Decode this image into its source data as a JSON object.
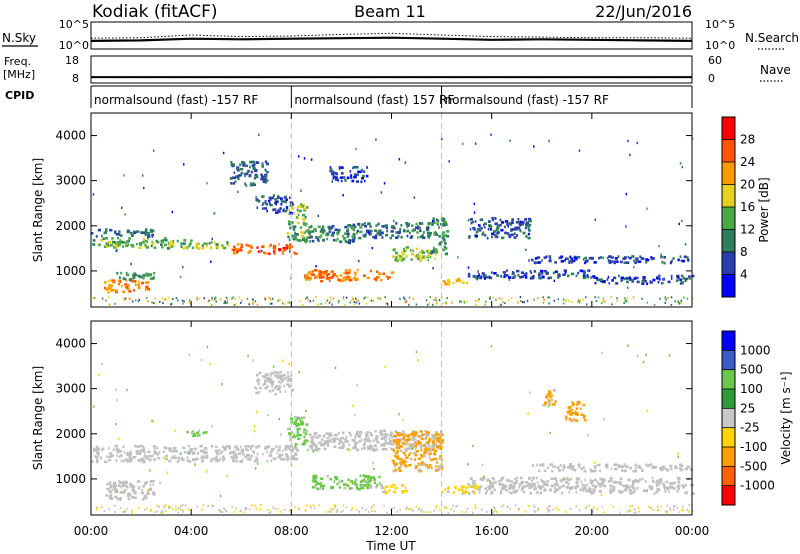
{
  "header": {
    "station": "Kodiak (fitACF)",
    "beam": "Beam 11",
    "date": "22/Jun/2016"
  },
  "colors": {
    "power_scale": [
      "#0000ff",
      "#2a3fae",
      "#2e7d5e",
      "#49a848",
      "#e6d21e",
      "#ff9b00",
      "#ff5500",
      "#ff0000"
    ],
    "velocity_scale": [
      "#ff0000",
      "#ff6000",
      "#ffa000",
      "#ffd400",
      "#c8c8c8",
      "#2e9c3a",
      "#6cc84a",
      "#3a5cc8",
      "#0000ff"
    ],
    "ground_scatter": "#c0c0c0"
  },
  "chart_data": [
    {
      "type": "line",
      "panel": "sky-noise",
      "left_label": "N.Sky",
      "left_ticks": [
        "10^5",
        "10^0"
      ],
      "right_label": "N.Search",
      "right_ticks": [
        "10^5",
        "10^0"
      ],
      "ylim": [
        0,
        5
      ],
      "ylog": true,
      "series": [
        {
          "name": "N.Sky",
          "style": "solid",
          "x": [
            0,
            2,
            4,
            6,
            8,
            10,
            12,
            14,
            16,
            18,
            20,
            22,
            24
          ],
          "y": [
            1.5,
            1.6,
            1.9,
            1.8,
            1.9,
            2.0,
            2.1,
            1.9,
            1.7,
            1.8,
            1.7,
            1.6,
            1.5
          ]
        },
        {
          "name": "N.Search",
          "style": "dotted",
          "x": [
            0,
            2,
            4,
            6,
            8,
            10,
            12,
            14,
            16,
            18,
            20,
            22,
            24
          ],
          "y": [
            2.0,
            2.1,
            2.6,
            2.3,
            2.4,
            2.7,
            2.9,
            2.6,
            2.3,
            2.2,
            2.1,
            2.1,
            2.0
          ]
        }
      ]
    },
    {
      "type": "line",
      "panel": "frequency-nave",
      "left_label": "Freq.",
      "left_unit": "[MHz]",
      "left_ticks": [
        "18",
        "8"
      ],
      "right_label": "Nave",
      "right_ticks": [
        "60",
        "0"
      ],
      "ylim": [
        8,
        18
      ],
      "y2lim": [
        0,
        60
      ],
      "series": [
        {
          "name": "Freq.",
          "style": "solid",
          "x": [
            0,
            24
          ],
          "y": [
            10.2,
            10.2
          ]
        },
        {
          "name": "Nave",
          "style": "dotted",
          "x": [
            0,
            24
          ],
          "y": [
            12,
            12
          ]
        }
      ]
    },
    {
      "type": "table",
      "panel": "cpid",
      "label": "CPID",
      "segments": [
        {
          "start": 0,
          "end": 8,
          "text": "normalsound (fast) -157 RF"
        },
        {
          "start": 8,
          "end": 14,
          "text": "normalsound (fast) 157 RF"
        },
        {
          "start": 14,
          "end": 24,
          "text": "normalsound (fast) -157 RF"
        }
      ]
    },
    {
      "type": "heatmap",
      "panel": "power",
      "ylabel": "Slant Range [km]",
      "xlim": [
        0,
        24
      ],
      "ylim": [
        200,
        4500
      ],
      "y_ticks": [
        1000,
        2000,
        3000,
        4000
      ],
      "colorbar_label": "Power [dB]",
      "colorbar_ticks": [
        4,
        8,
        12,
        16,
        20,
        24,
        28
      ],
      "colorbar_range": [
        0,
        32
      ],
      "regions": [
        {
          "x0": 0.0,
          "x1": 3.0,
          "y0": 1540,
          "y1": 1760,
          "v": 14
        },
        {
          "x0": 3.0,
          "x1": 5.5,
          "y0": 1520,
          "y1": 1720,
          "v": 15
        },
        {
          "x0": 5.5,
          "x1": 8.2,
          "y0": 1400,
          "y1": 1620,
          "v": 26
        },
        {
          "x0": 0.0,
          "x1": 2.5,
          "y0": 1780,
          "y1": 1950,
          "v": 8
        },
        {
          "x0": 0.5,
          "x1": 2.3,
          "y0": 550,
          "y1": 820,
          "v": 22
        },
        {
          "x0": 1.0,
          "x1": 2.5,
          "y0": 820,
          "y1": 980,
          "v": 12
        },
        {
          "x0": 5.5,
          "x1": 7.0,
          "y0": 2900,
          "y1": 3450,
          "v": 8
        },
        {
          "x0": 7.8,
          "x1": 8.6,
          "y0": 1700,
          "y1": 2500,
          "v": 14
        },
        {
          "x0": 8.5,
          "x1": 10.5,
          "y0": 1650,
          "y1": 2050,
          "v": 10
        },
        {
          "x0": 8.5,
          "x1": 12.0,
          "y0": 800,
          "y1": 1050,
          "v": 24
        },
        {
          "x0": 10.5,
          "x1": 13.5,
          "y0": 1750,
          "y1": 2100,
          "v": 9
        },
        {
          "x0": 12.0,
          "x1": 13.8,
          "y0": 1250,
          "y1": 1550,
          "v": 16
        },
        {
          "x0": 13.5,
          "x1": 14.2,
          "y0": 1400,
          "y1": 2200,
          "v": 12
        },
        {
          "x0": 14.0,
          "x1": 15.0,
          "y0": 700,
          "y1": 850,
          "v": 20
        },
        {
          "x0": 15.0,
          "x1": 20.0,
          "y0": 860,
          "y1": 1040,
          "v": 7
        },
        {
          "x0": 20.0,
          "x1": 24.0,
          "y0": 740,
          "y1": 920,
          "v": 6
        },
        {
          "x0": 15.0,
          "x1": 17.5,
          "y0": 1750,
          "y1": 2200,
          "v": 7
        },
        {
          "x0": 17.5,
          "x1": 24.0,
          "y0": 1200,
          "y1": 1350,
          "v": 6
        },
        {
          "x0": 9.5,
          "x1": 11.0,
          "y0": 3000,
          "y1": 3350,
          "v": 6
        },
        {
          "x0": 6.5,
          "x1": 8.0,
          "y0": 2300,
          "y1": 2700,
          "v": 6
        }
      ]
    },
    {
      "type": "heatmap",
      "panel": "velocity",
      "ylabel": "Slant Range [km]",
      "xlabel": "Time UT",
      "xlim": [
        0,
        24
      ],
      "ylim": [
        200,
        4500
      ],
      "x_ticks": [
        "00:00",
        "04:00",
        "08:00",
        "12:00",
        "16:00",
        "20:00",
        "00:00"
      ],
      "y_ticks": [
        1000,
        2000,
        3000,
        4000
      ],
      "colorbar_label": "Velocity [m s⁻¹]",
      "colorbar_ticks": [
        "1000",
        "500",
        "100",
        "25",
        "-25",
        "-100",
        "-500",
        "-1000"
      ],
      "regions": [
        {
          "x0": 0.0,
          "x1": 8.2,
          "y0": 1400,
          "y1": 1760,
          "v": "ground"
        },
        {
          "x0": 0.5,
          "x1": 2.5,
          "y0": 550,
          "y1": 980,
          "v": "ground"
        },
        {
          "x0": 8.5,
          "x1": 10.5,
          "y0": 1650,
          "y1": 2050,
          "v": "ground"
        },
        {
          "x0": 10.5,
          "x1": 14.0,
          "y0": 1650,
          "y1": 2100,
          "v": "ground"
        },
        {
          "x0": 15.0,
          "x1": 24.0,
          "y0": 700,
          "y1": 1050,
          "v": "ground"
        },
        {
          "x0": 17.5,
          "x1": 24.0,
          "y0": 1200,
          "y1": 1350,
          "v": "ground"
        },
        {
          "x0": 8.8,
          "x1": 11.5,
          "y0": 800,
          "y1": 1100,
          "v": 150
        },
        {
          "x0": 11.5,
          "x1": 12.6,
          "y0": 700,
          "y1": 900,
          "v": -60
        },
        {
          "x0": 12.0,
          "x1": 14.0,
          "y0": 1200,
          "y1": 2100,
          "v": -200
        },
        {
          "x0": 14.0,
          "x1": 15.5,
          "y0": 700,
          "y1": 880,
          "v": -60
        },
        {
          "x0": 7.8,
          "x1": 8.6,
          "y0": 1750,
          "y1": 2400,
          "v": 150
        },
        {
          "x0": 3.8,
          "x1": 4.6,
          "y0": 1980,
          "y1": 2130,
          "v": 300
        },
        {
          "x0": 18.0,
          "x1": 18.6,
          "y0": 2650,
          "y1": 3050,
          "v": -200
        },
        {
          "x0": 18.9,
          "x1": 19.7,
          "y0": 2300,
          "y1": 2750,
          "v": -200
        },
        {
          "x0": 6.5,
          "x1": 8.0,
          "y0": 2900,
          "y1": 3400,
          "v": "ground"
        }
      ]
    }
  ]
}
